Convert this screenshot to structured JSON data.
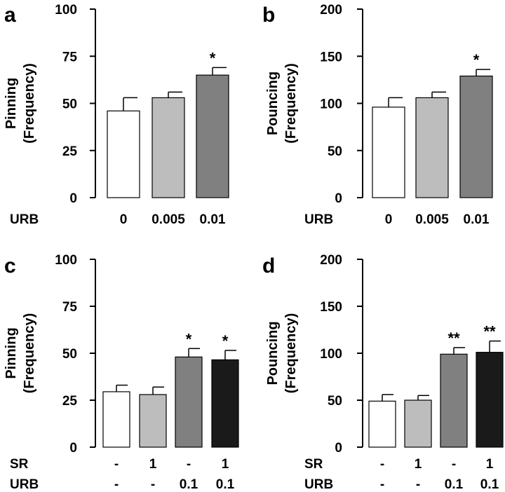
{
  "chart_data": [
    {
      "panel": "a",
      "type": "bar",
      "ylabel_line1": "Pinning",
      "ylabel_line2": "(Frequency)",
      "ylim": [
        0,
        100
      ],
      "yticks": [
        "0",
        "25",
        "50",
        "75",
        "100"
      ],
      "values": [
        46,
        53,
        65
      ],
      "errors": [
        7,
        3,
        4
      ],
      "colors": [
        "#ffffff",
        "#bdbdbd",
        "#808080"
      ],
      "significance": [
        "",
        "",
        "*"
      ],
      "condition_rows": [
        {
          "label": "URB",
          "values": [
            "0",
            "0.005",
            "0.01"
          ]
        }
      ]
    },
    {
      "panel": "b",
      "type": "bar",
      "ylabel_line1": "Pouncing",
      "ylabel_line2": "(Frequency)",
      "ylim": [
        0,
        200
      ],
      "yticks": [
        "0",
        "50",
        "100",
        "150",
        "200"
      ],
      "values": [
        96,
        106,
        129
      ],
      "errors": [
        10,
        6,
        7
      ],
      "colors": [
        "#ffffff",
        "#bdbdbd",
        "#808080"
      ],
      "significance": [
        "",
        "",
        "*"
      ],
      "condition_rows": [
        {
          "label": "URB",
          "values": [
            "0",
            "0.005",
            "0.01"
          ]
        }
      ]
    },
    {
      "panel": "c",
      "type": "bar",
      "ylabel_line1": "Pinning",
      "ylabel_line2": "(Frequency)",
      "ylim": [
        0,
        100
      ],
      "yticks": [
        "0",
        "25",
        "50",
        "75",
        "100"
      ],
      "values": [
        29.5,
        28,
        48,
        46.5
      ],
      "errors": [
        3.5,
        4,
        4.5,
        5
      ],
      "colors": [
        "#ffffff",
        "#bdbdbd",
        "#808080",
        "#1a1a1a"
      ],
      "significance": [
        "",
        "",
        "*",
        "*"
      ],
      "condition_rows": [
        {
          "label": "SR",
          "values": [
            "-",
            "1",
            "-",
            "1"
          ]
        },
        {
          "label": "URB",
          "values": [
            "-",
            "-",
            "0.1",
            "0.1"
          ]
        }
      ]
    },
    {
      "panel": "d",
      "type": "bar",
      "ylabel_line1": "Pouncing",
      "ylabel_line2": "(Frequency)",
      "ylim": [
        0,
        200
      ],
      "yticks": [
        "0",
        "50",
        "100",
        "150",
        "200"
      ],
      "values": [
        49,
        50,
        99,
        101
      ],
      "errors": [
        7,
        5,
        7,
        12
      ],
      "colors": [
        "#ffffff",
        "#bdbdbd",
        "#808080",
        "#1a1a1a"
      ],
      "significance": [
        "",
        "",
        "**",
        "**"
      ],
      "condition_rows": [
        {
          "label": "SR",
          "values": [
            "-",
            "1",
            "-",
            "1"
          ]
        },
        {
          "label": "URB",
          "values": [
            "-",
            "-",
            "0.1",
            "0.1"
          ]
        }
      ]
    }
  ]
}
